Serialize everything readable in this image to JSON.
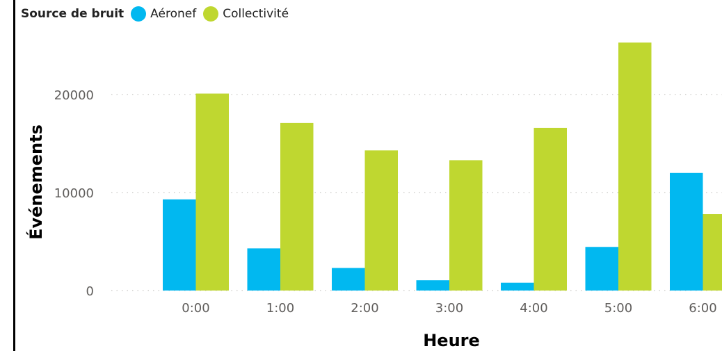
{
  "legend": {
    "title": "Source de bruit",
    "items": [
      {
        "label": "Aéronef",
        "color": "#01b8f0"
      },
      {
        "label": "Collectivité",
        "color": "#bfd730"
      }
    ]
  },
  "chart_data": {
    "type": "bar",
    "title": "",
    "xlabel": "Heure",
    "ylabel": "Événements",
    "categories": [
      "0:00",
      "1:00",
      "2:00",
      "3:00",
      "4:00",
      "5:00",
      "6:00"
    ],
    "series": [
      {
        "name": "Aéronef",
        "color": "#01b8f0",
        "values": [
          9300,
          4300,
          2300,
          1050,
          800,
          4450,
          12000
        ]
      },
      {
        "name": "Collectivité",
        "color": "#bfd730",
        "values": [
          20100,
          17100,
          14300,
          13300,
          16600,
          25300,
          7800
        ]
      }
    ],
    "yticks": [
      0,
      10000,
      20000
    ],
    "ylim": [
      0,
      27000
    ],
    "grid": true,
    "legend_position": "top-left"
  }
}
